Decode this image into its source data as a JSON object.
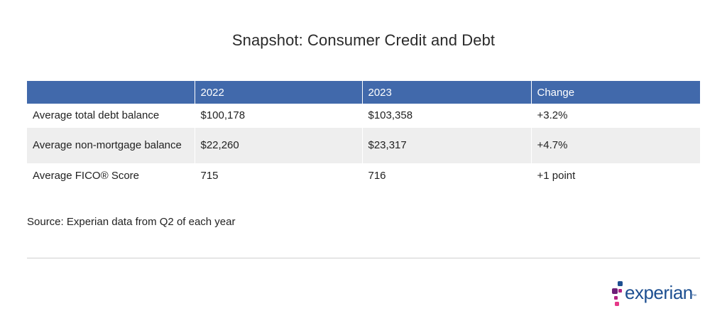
{
  "title": "Snapshot: Consumer Credit and Debt",
  "table": {
    "headers": [
      "",
      "2022",
      "2023",
      "Change"
    ],
    "rows": [
      [
        "Average total debt balance",
        "$100,178",
        "$103,358",
        "+3.2%"
      ],
      [
        "Average non-mortgage balance",
        "$22,260",
        "$23,317",
        "+4.7%"
      ],
      [
        "Average FICO® Score",
        "715",
        "716",
        "+1 point"
      ]
    ]
  },
  "source": "Source: Experian data from Q2 of each year",
  "logo": {
    "text": "experian",
    "trademark": "™",
    "colors": {
      "text": "#1d4f91",
      "dot_blue": "#1d4f91",
      "dot_purple": "#6d2077",
      "dot_magenta": "#b12384",
      "dot_pink": "#e63888"
    }
  },
  "colors": {
    "header_bg": "#4169ab",
    "header_text": "#ffffff",
    "stripe_bg": "#eeeeee"
  }
}
